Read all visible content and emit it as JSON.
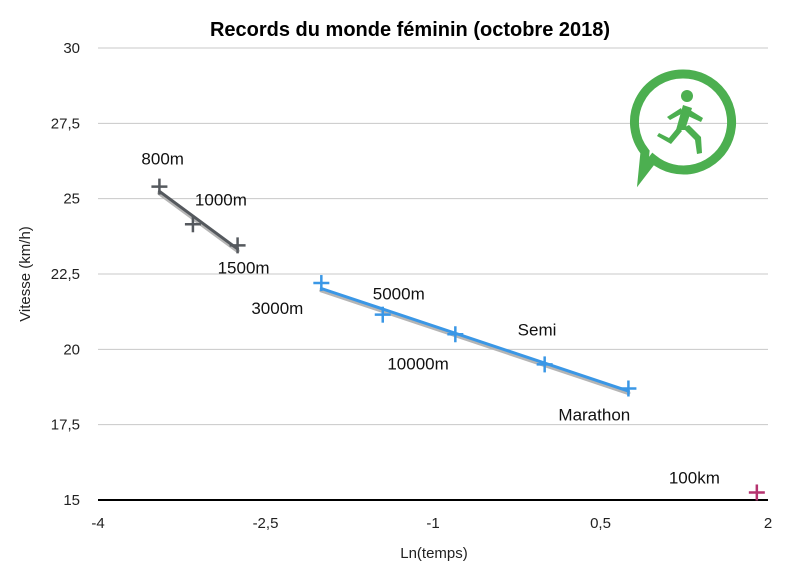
{
  "chart_data": {
    "type": "scatter",
    "title": "Records du monde féminin (octobre 2018)",
    "xlabel": "Ln(temps)",
    "ylabel": "Vitesse (km/h)",
    "xlim": [
      -4,
      2
    ],
    "ylim": [
      15,
      30
    ],
    "x_ticks": [
      "-4",
      "-2,5",
      "-1",
      "0,5",
      "2"
    ],
    "x_tick_values": [
      -4,
      -2.5,
      -1,
      0.5,
      2
    ],
    "y_ticks": [
      "15",
      "17,5",
      "20",
      "22,5",
      "25",
      "27,5",
      "30"
    ],
    "y_tick_values": [
      15,
      17.5,
      20,
      22.5,
      25,
      27.5,
      30
    ],
    "grid": true,
    "series": [
      {
        "color": "#55595e",
        "trendline": true,
        "points": [
          {
            "label": "800m",
            "x": -3.45,
            "y": 25.4
          },
          {
            "label": "1000m",
            "x": -3.15,
            "y": 24.15
          },
          {
            "label": "1500m",
            "x": -2.75,
            "y": 23.45
          }
        ]
      },
      {
        "color": "#3a97e6",
        "trendline": true,
        "points": [
          {
            "label": "3000m",
            "x": -2.0,
            "y": 22.2
          },
          {
            "label": "5000m",
            "x": -1.45,
            "y": 21.15
          },
          {
            "label": "10000m",
            "x": -0.8,
            "y": 20.5
          },
          {
            "label": "Semi",
            "x": 0.0,
            "y": 19.5
          },
          {
            "label": "Marathon",
            "x": 0.75,
            "y": 18.7
          }
        ]
      },
      {
        "color": "#b5336f",
        "trendline": false,
        "points": [
          {
            "label": "100km",
            "x": 1.9,
            "y": 15.25
          }
        ]
      }
    ]
  },
  "logo": {
    "icon": "runner-chat-bubble-icon",
    "color": "#4caf50"
  }
}
